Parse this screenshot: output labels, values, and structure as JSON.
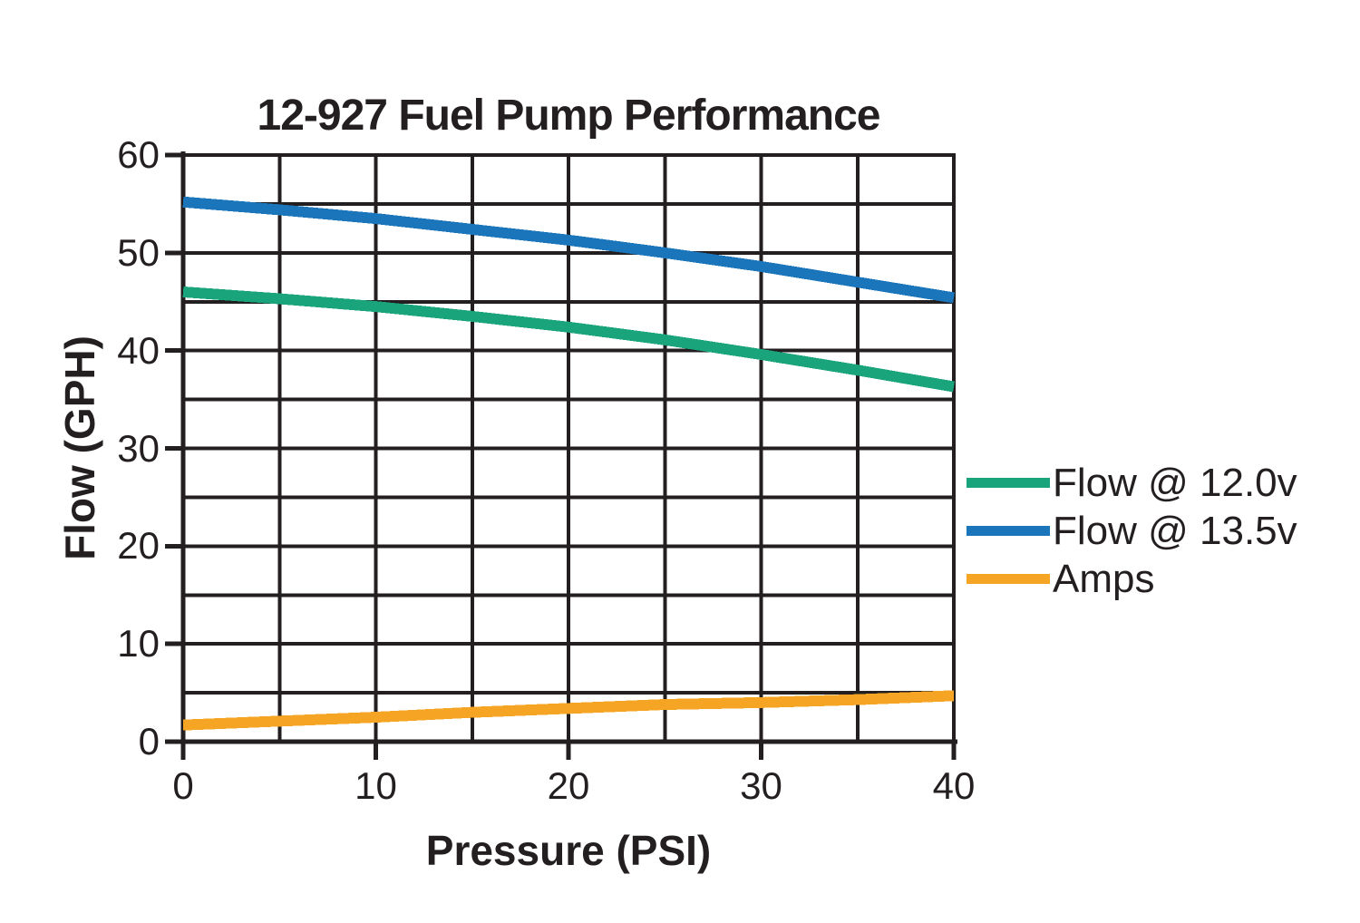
{
  "page": {
    "background": "#ffffff",
    "text_color": "#231F20"
  },
  "chart_data": {
    "type": "line",
    "title": "12-927 Fuel Pump Performance",
    "xlabel": "Pressure (PSI)",
    "ylabel": "Flow (GPH)",
    "xlim": [
      0,
      40
    ],
    "ylim": [
      0,
      60
    ],
    "x_tick_step": 10,
    "y_tick_step": 10,
    "grid_step": 5,
    "grid": true,
    "grid_color": "#231F20",
    "axis_color": "#231F20",
    "x_tick_labels": [
      "0",
      "10",
      "20",
      "30",
      "40"
    ],
    "y_tick_labels": [
      "0",
      "10",
      "20",
      "30",
      "40",
      "50",
      "60"
    ],
    "legend_position": "right",
    "x": [
      0,
      5,
      10,
      15,
      20,
      25,
      30,
      35,
      40
    ],
    "series": [
      {
        "name": "Flow @ 12.0v",
        "color": "#19A47B",
        "values": [
          46.0,
          45.3,
          44.5,
          43.5,
          42.4,
          41.1,
          39.6,
          38.0,
          36.3
        ]
      },
      {
        "name": "Flow @ 13.5v",
        "color": "#1B75BB",
        "values": [
          55.2,
          54.4,
          53.5,
          52.4,
          51.3,
          50.0,
          48.6,
          47.0,
          45.4
        ]
      },
      {
        "name": "Amps",
        "color": "#F5A423",
        "values": [
          1.7,
          2.1,
          2.5,
          3.0,
          3.4,
          3.8,
          4.0,
          4.3,
          4.7
        ]
      }
    ]
  }
}
